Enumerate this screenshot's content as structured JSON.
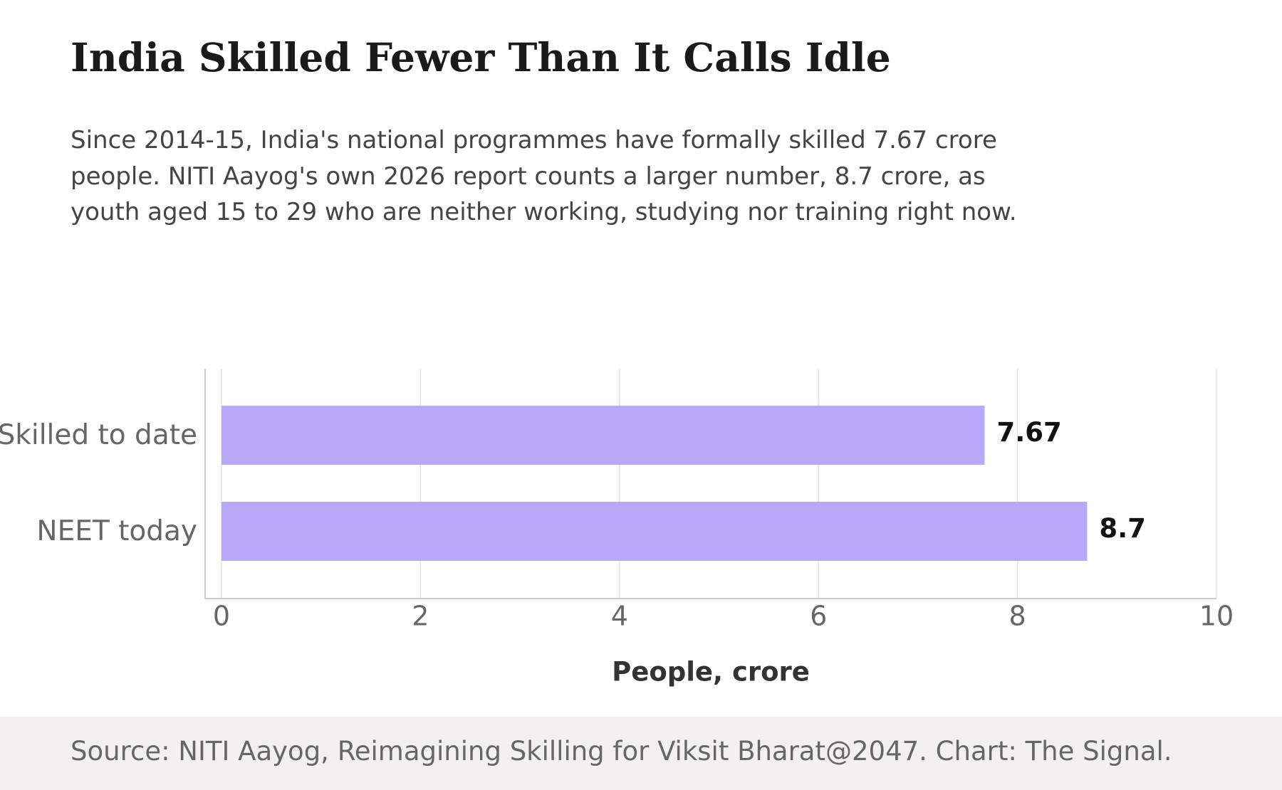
{
  "chart_data": {
    "type": "bar",
    "orientation": "horizontal",
    "title": "India Skilled Fewer Than It Calls Idle",
    "subtitle": "Since 2014-15, India's national programmes have formally skilled 7.67 crore people. NITI Aayog's own 2026 report counts a larger number, 8.7 crore, as youth aged 15 to 29 who are neither working, studying nor training right now.",
    "categories": [
      "Skilled to date",
      "NEET today"
    ],
    "values": [
      7.67,
      8.7
    ],
    "color": "#b8a9fb",
    "xlim": [
      0,
      10
    ],
    "xticks": [
      0,
      2,
      4,
      6,
      8,
      10
    ],
    "xlabel": "People, crore",
    "grid": true,
    "source": "Source: NITI Aayog, Reimagining Skilling for Viksit Bharat@2047. Chart: The Signal."
  }
}
